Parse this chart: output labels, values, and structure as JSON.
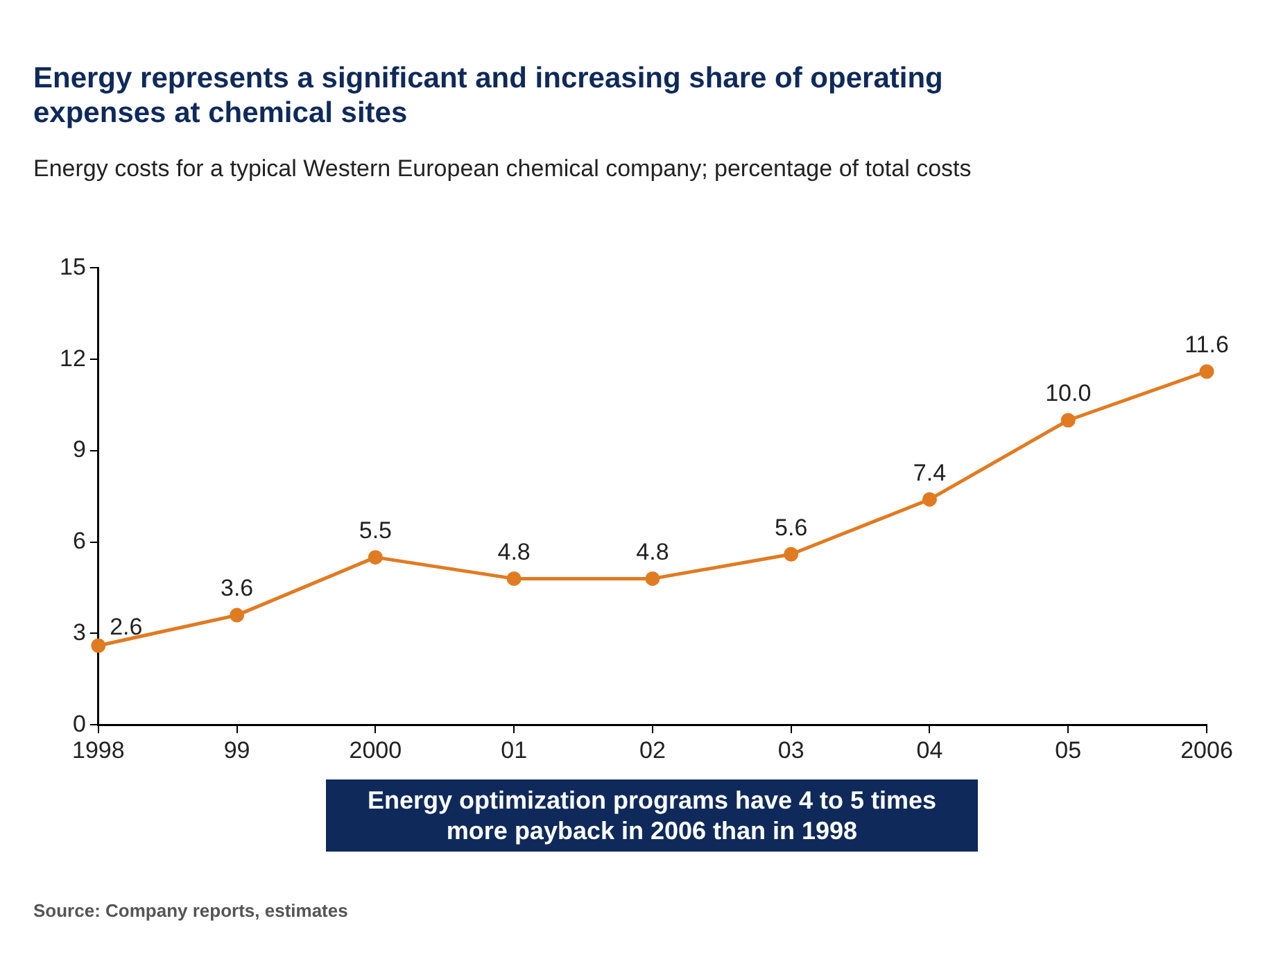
{
  "chart_data": {
    "type": "line",
    "title": "Energy represents a significant and increasing share of operating expenses at chemical sites",
    "subtitle": "Energy costs for a typical Western European chemical company; percentage of total costs",
    "categories": [
      "1998",
      "99",
      "2000",
      "01",
      "02",
      "03",
      "04",
      "05",
      "2006"
    ],
    "series": [
      {
        "color": "#e07b22",
        "values": [
          2.6,
          3.6,
          5.5,
          4.8,
          4.8,
          5.6,
          7.4,
          10.0,
          11.6
        ],
        "value_labels": [
          "2.6",
          "3.6",
          "5.5",
          "4.8",
          "4.8",
          "5.6",
          "7.4",
          "10.0",
          "11.6"
        ]
      }
    ],
    "ylim": [
      0,
      15
    ],
    "yticks": [
      0,
      3,
      6,
      9,
      12,
      15
    ],
    "grid": false,
    "legend": false,
    "marker": "circle",
    "line_style": "solid",
    "annotations": [
      "Energy optimization programs have 4 to 5 times more payback in 2006 than in 1998",
      "Source: Company reports, estimates"
    ]
  }
}
